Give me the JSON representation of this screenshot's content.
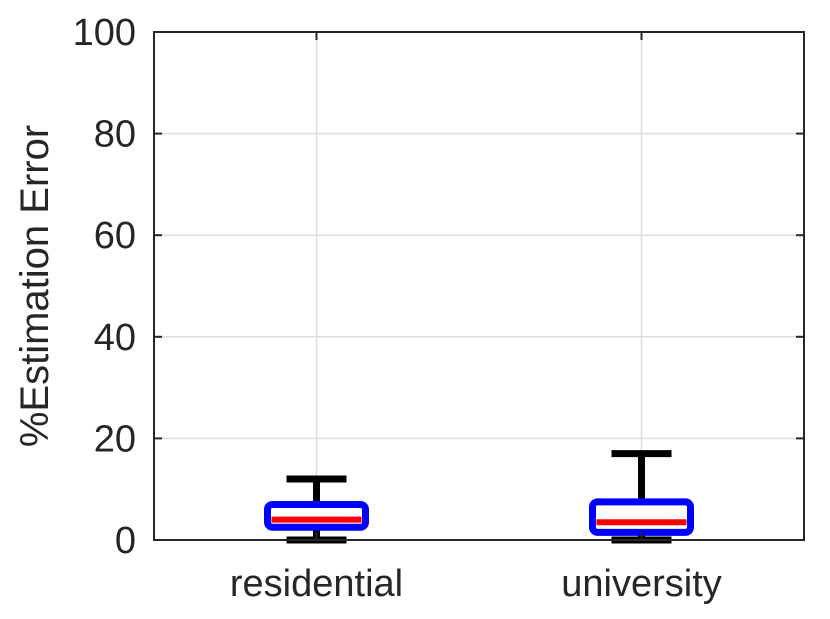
{
  "chart_data": {
    "type": "box",
    "title": "",
    "xlabel": "",
    "ylabel": "%Estimation Error",
    "ylim": [
      0,
      100
    ],
    "yticks": [
      0,
      20,
      40,
      60,
      80,
      100
    ],
    "grid": true,
    "categories": [
      "residential",
      "university"
    ],
    "boxes": [
      {
        "category": "residential",
        "whisker_low": 0,
        "q1": 2.5,
        "median": 4,
        "q3": 7,
        "whisker_high": 12
      },
      {
        "category": "university",
        "whisker_low": 0,
        "q1": 1.5,
        "median": 3.5,
        "q3": 7.5,
        "whisker_high": 17
      }
    ],
    "colors": {
      "box": "#0000ff",
      "median": "#ff0000",
      "whisker": "#000000",
      "grid": "#dcdcdc",
      "axis": "#262626"
    }
  }
}
